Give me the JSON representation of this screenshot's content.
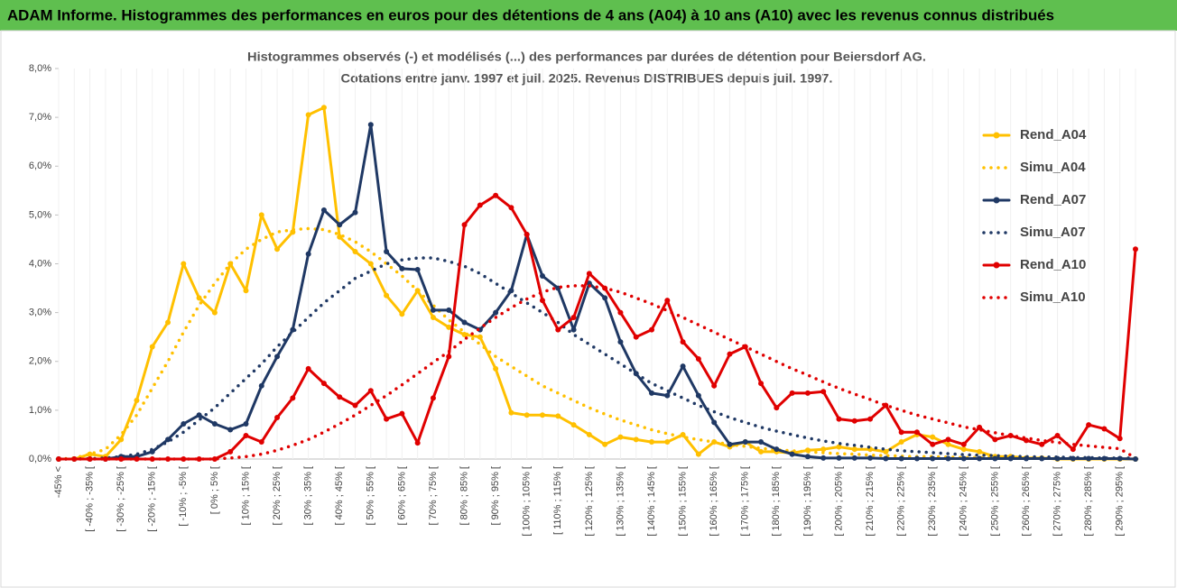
{
  "chart_data": {
    "type": "line",
    "title": "ADAM Informe. Histogrammes des performances en euros pour des détentions de 4 ans (A04) à 10 ans (A10) avec les revenus connus distribués",
    "subtitle": [
      "Histogrammes observés (-) et modélisés (...) des performances par durées de détention pour Beiersdorf AG.",
      "Cotations entre janv. 1997 et juil. 2025. Revenus DISTRIBUES depuis juil. 1997."
    ],
    "categories": [
      "-45% <",
      null,
      "[ -40% ; -35% [",
      null,
      "[ -30% ; -25% [",
      null,
      "[ -20% ; -15% [",
      null,
      "[ -10% ; -5% [",
      null,
      "[ 0% ; 5% [",
      null,
      "[ 10% ; 15% [",
      null,
      "[ 20% ; 25% [",
      null,
      "[ 30% ; 35% [",
      null,
      "[ 40% ; 45% [",
      null,
      "[ 50% ; 55% [",
      null,
      "[ 60% ; 65% [",
      null,
      "[ 70% ; 75% [",
      null,
      "[ 80% ; 85% [",
      null,
      "[ 90% ; 95% [",
      null,
      "[ 100% ; 105% [",
      null,
      "[ 110% ; 115% [",
      null,
      "[ 120% ; 125% [",
      null,
      "[ 130% ; 135% [",
      null,
      "[ 140% ; 145% [",
      null,
      "[ 150% ; 155% [",
      null,
      "[ 160% ; 165% [",
      null,
      "[ 170% ; 175% [",
      null,
      "[ 180% ; 185% [",
      null,
      "[ 190% ; 195% [",
      null,
      "[ 200% ; 205% [",
      null,
      "[ 210% ; 215% [",
      null,
      "[ 220% ; 225% [",
      null,
      "[ 230% ; 235% [",
      null,
      "[ 240% ; 245% [",
      null,
      "[ 250% ; 255% [",
      null,
      "[ 260% ; 265% [",
      null,
      "[ 270% ; 275% [",
      null,
      "[ 280% ; 285% [",
      null,
      "[ 290% ; 295% [",
      null
    ],
    "series": [
      {
        "name": "Rend_A04",
        "color": "#ffc000",
        "dash": "solid",
        "marker": true,
        "values": [
          0,
          0,
          0.1,
          0.05,
          0.4,
          1.2,
          2.3,
          2.8,
          4.0,
          3.3,
          3.0,
          4.0,
          3.45,
          5.0,
          4.3,
          4.65,
          7.05,
          7.2,
          4.55,
          4.25,
          4.0,
          3.35,
          2.97,
          3.45,
          2.9,
          2.7,
          2.55,
          2.5,
          1.85,
          0.95,
          0.9,
          0.9,
          0.88,
          0.7,
          0.5,
          0.3,
          0.45,
          0.4,
          0.35,
          0.35,
          0.5,
          0.1,
          0.35,
          0.25,
          0.35,
          0.15,
          0.15,
          0.12,
          0.18,
          0.2,
          0.25,
          0.2,
          0.2,
          0.15,
          0.35,
          0.5,
          0.45,
          0.3,
          0.2,
          0.15,
          0.05,
          0.05,
          0.02,
          0.02,
          0,
          0,
          0,
          0,
          0,
          0
        ]
      },
      {
        "name": "Simu_A04",
        "color": "#ffc000",
        "dash": "dotted",
        "marker": false,
        "values": [
          0,
          0.02,
          0.1,
          0.2,
          0.5,
          0.9,
          1.45,
          2.0,
          2.6,
          3.15,
          3.6,
          4.0,
          4.3,
          4.5,
          4.65,
          4.7,
          4.72,
          4.7,
          4.6,
          4.45,
          4.25,
          4.0,
          3.75,
          3.45,
          3.15,
          2.85,
          2.6,
          2.35,
          2.1,
          1.9,
          1.7,
          1.5,
          1.35,
          1.2,
          1.05,
          0.92,
          0.8,
          0.7,
          0.6,
          0.52,
          0.45,
          0.4,
          0.35,
          0.3,
          0.26,
          0.22,
          0.19,
          0.17,
          0.15,
          0.13,
          0.11,
          0.1,
          0.08,
          0.07,
          0.06,
          0.05,
          0.05,
          0.04,
          0.03,
          0.03,
          0.03,
          0.02,
          0.02,
          0.02,
          0.01,
          0.01,
          0.01,
          0.01,
          0.01,
          0
        ]
      },
      {
        "name": "Rend_A07",
        "color": "#1f3864",
        "dash": "solid",
        "marker": true,
        "values": [
          0,
          0,
          0,
          0,
          0.05,
          0.05,
          0.15,
          0.4,
          0.72,
          0.9,
          0.72,
          0.6,
          0.72,
          1.5,
          2.1,
          2.65,
          4.2,
          5.1,
          4.8,
          5.05,
          6.85,
          4.25,
          3.9,
          3.88,
          3.05,
          3.05,
          2.8,
          2.65,
          3.0,
          3.45,
          4.6,
          3.75,
          3.5,
          2.65,
          3.6,
          3.3,
          2.4,
          1.75,
          1.35,
          1.3,
          1.9,
          1.3,
          0.75,
          0.3,
          0.35,
          0.35,
          0.2,
          0.1,
          0.05,
          0.02,
          0.02,
          0.02,
          0.02,
          0.01,
          0.01,
          0.01,
          0.01,
          0.01,
          0.01,
          0.01,
          0.01,
          0.01,
          0.01,
          0.01,
          0.01,
          0.01,
          0.01,
          0.01,
          0.01,
          0
        ]
      },
      {
        "name": "Simu_A07",
        "color": "#1f3864",
        "dash": "dotted",
        "marker": false,
        "values": [
          0,
          0,
          0.01,
          0.02,
          0.05,
          0.1,
          0.2,
          0.35,
          0.55,
          0.8,
          1.05,
          1.35,
          1.65,
          1.95,
          2.3,
          2.6,
          2.9,
          3.2,
          3.45,
          3.7,
          3.85,
          4.0,
          4.08,
          4.12,
          4.12,
          4.05,
          3.95,
          3.8,
          3.6,
          3.4,
          3.2,
          3.0,
          2.8,
          2.55,
          2.35,
          2.15,
          1.95,
          1.75,
          1.55,
          1.4,
          1.25,
          1.1,
          0.97,
          0.85,
          0.75,
          0.65,
          0.57,
          0.5,
          0.43,
          0.37,
          0.32,
          0.28,
          0.24,
          0.2,
          0.17,
          0.15,
          0.13,
          0.11,
          0.09,
          0.08,
          0.07,
          0.06,
          0.05,
          0.04,
          0.04,
          0.03,
          0.03,
          0.02,
          0.02,
          0.02
        ]
      },
      {
        "name": "Rend_A10",
        "color": "#e00000",
        "dash": "solid",
        "marker": true,
        "values": [
          0,
          0,
          0,
          0,
          0,
          0,
          0,
          0,
          0,
          0,
          0,
          0.15,
          0.48,
          0.35,
          0.85,
          1.25,
          1.85,
          1.55,
          1.27,
          1.1,
          1.4,
          0.82,
          0.93,
          0.33,
          1.25,
          2.1,
          4.8,
          5.2,
          5.4,
          5.15,
          4.6,
          3.25,
          2.65,
          2.9,
          3.8,
          3.5,
          3.0,
          2.5,
          2.65,
          3.25,
          2.4,
          2.05,
          1.5,
          2.15,
          2.3,
          1.55,
          1.05,
          1.35,
          1.35,
          1.38,
          0.82,
          0.78,
          0.82,
          1.1,
          0.55,
          0.55,
          0.3,
          0.4,
          0.3,
          0.65,
          0.4,
          0.48,
          0.38,
          0.3,
          0.48,
          0.2,
          0.7,
          0.62,
          0.42,
          4.3
        ]
      },
      {
        "name": "Simu_A10",
        "color": "#e00000",
        "dash": "dotted",
        "marker": false,
        "values": [
          0,
          0,
          0,
          0,
          0,
          0,
          0,
          0,
          0,
          0,
          0,
          0.02,
          0.05,
          0.1,
          0.18,
          0.28,
          0.4,
          0.55,
          0.72,
          0.9,
          1.1,
          1.3,
          1.52,
          1.75,
          1.98,
          2.2,
          2.45,
          2.68,
          2.9,
          3.1,
          3.28,
          3.42,
          3.52,
          3.55,
          3.55,
          3.5,
          3.42,
          3.3,
          3.18,
          3.04,
          2.9,
          2.75,
          2.6,
          2.45,
          2.3,
          2.15,
          2.0,
          1.85,
          1.72,
          1.58,
          1.45,
          1.33,
          1.22,
          1.1,
          1.0,
          0.9,
          0.82,
          0.74,
          0.66,
          0.6,
          0.54,
          0.48,
          0.43,
          0.38,
          0.34,
          0.3,
          0.27,
          0.24,
          0.21,
          0.02
        ]
      }
    ],
    "ylim": [
      0,
      8
    ],
    "yticks": [
      {
        "value": 0,
        "label": "0,0%"
      },
      {
        "value": 1,
        "label": "1,0%"
      },
      {
        "value": 2,
        "label": "2,0%"
      },
      {
        "value": 3,
        "label": "3,0%"
      },
      {
        "value": 4,
        "label": "4,0%"
      },
      {
        "value": 5,
        "label": "5,0%"
      },
      {
        "value": 6,
        "label": "6,0%"
      },
      {
        "value": 7,
        "label": "7,0%"
      },
      {
        "value": 8,
        "label": "8,0%"
      }
    ],
    "legend": "right"
  }
}
